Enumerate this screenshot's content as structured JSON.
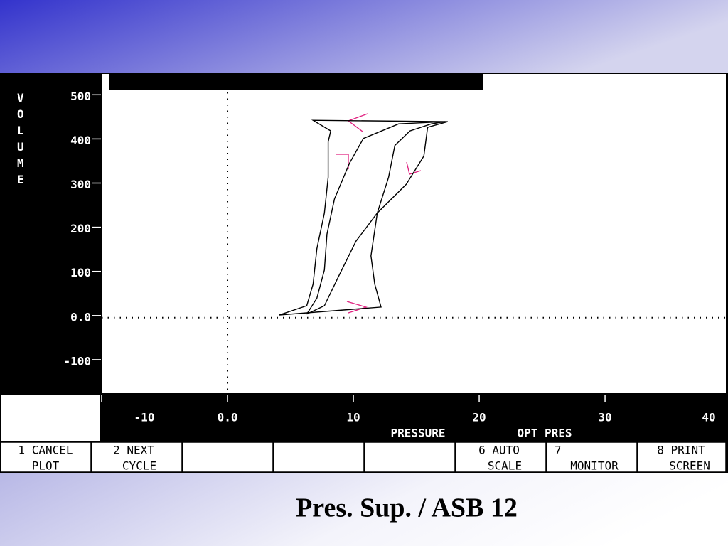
{
  "chart_data": {
    "type": "line",
    "title": "Pres. Sup. / ASB 12",
    "y_label": "VOLUME",
    "x_label": "PRESSURE",
    "mode_label": "OPT PRES",
    "xlim": [
      -10,
      39.6
    ],
    "ylim": [
      -171,
      552
    ],
    "xticks": [
      -10,
      {
        "value": 0,
        "label": "0.0"
      },
      10,
      20,
      30,
      40
    ],
    "yticks": [
      500,
      400,
      300,
      200,
      100,
      {
        "value": 0,
        "label": "0.0"
      },
      -100
    ],
    "series": [
      {
        "color": "#000000",
        "x": [
          4.1,
          6.3,
          6.8,
          7.1,
          7.7,
          8.0,
          8.0,
          8.2,
          6.8,
          17.5,
          15.9,
          15.6,
          14.2,
          11.9,
          11.4,
          11.7,
          12.2,
          6.3,
          4.1
        ],
        "values": [
          6,
          27,
          76,
          156,
          237,
          318,
          398,
          423,
          447,
          444,
          431,
          366,
          302,
          237,
          140,
          76,
          24,
          11,
          6
        ]
      },
      {
        "color": "#000000",
        "x": [
          6.3,
          7.1,
          7.7,
          7.9,
          8.5,
          9.7,
          10.8,
          13.6,
          17.3,
          16.2,
          14.5,
          13.3,
          12.8,
          11.9,
          10.2,
          8.8,
          7.7,
          6.3
        ],
        "values": [
          8,
          44,
          108,
          189,
          269,
          350,
          406,
          439,
          444,
          439,
          423,
          390,
          318,
          237,
          173,
          92,
          27,
          8
        ]
      }
    ]
  },
  "softkeys": [
    [
      "1 CANCEL",
      "PLOT"
    ],
    [
      "2 NEXT",
      "CYCLE"
    ],
    [
      "6 AUTO",
      "SCALE"
    ],
    [
      "7",
      "MONITOR"
    ],
    [
      "8  PRINT",
      "SCREEN"
    ]
  ]
}
